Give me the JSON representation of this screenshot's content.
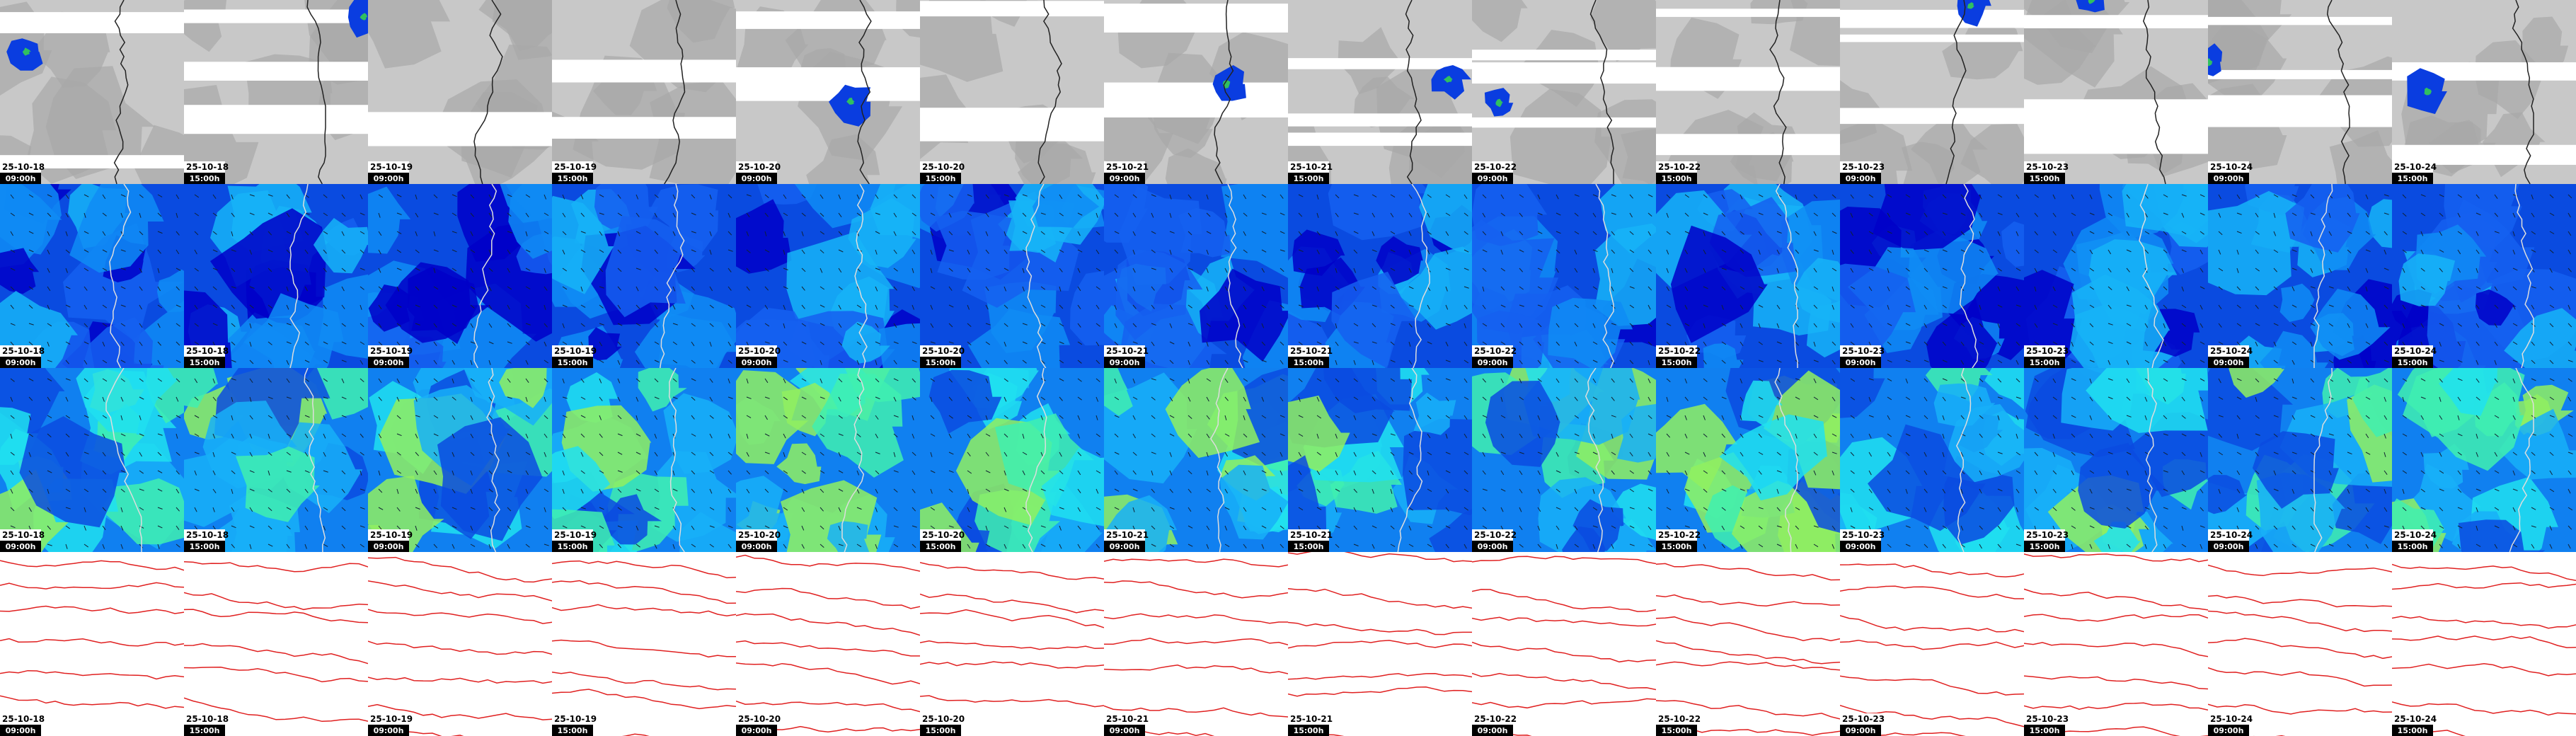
{
  "columns": [
    {
      "date": "25-10-18",
      "time": "09:00h"
    },
    {
      "date": "25-10-18",
      "time": "15:00h"
    },
    {
      "date": "25-10-19",
      "time": "09:00h"
    },
    {
      "date": "25-10-19",
      "time": "15:00h"
    },
    {
      "date": "25-10-20",
      "time": "09:00h"
    },
    {
      "date": "25-10-20",
      "time": "15:00h"
    },
    {
      "date": "25-10-21",
      "time": "09:00h"
    },
    {
      "date": "25-10-21",
      "time": "15:00h"
    },
    {
      "date": "25-10-22",
      "time": "09:00h"
    },
    {
      "date": "25-10-22",
      "time": "15:00h"
    },
    {
      "date": "25-10-23",
      "time": "09:00h"
    },
    {
      "date": "25-10-23",
      "time": "15:00h"
    },
    {
      "date": "25-10-24",
      "time": "09:00h"
    },
    {
      "date": "25-10-24",
      "time": "15:00h"
    }
  ]
}
